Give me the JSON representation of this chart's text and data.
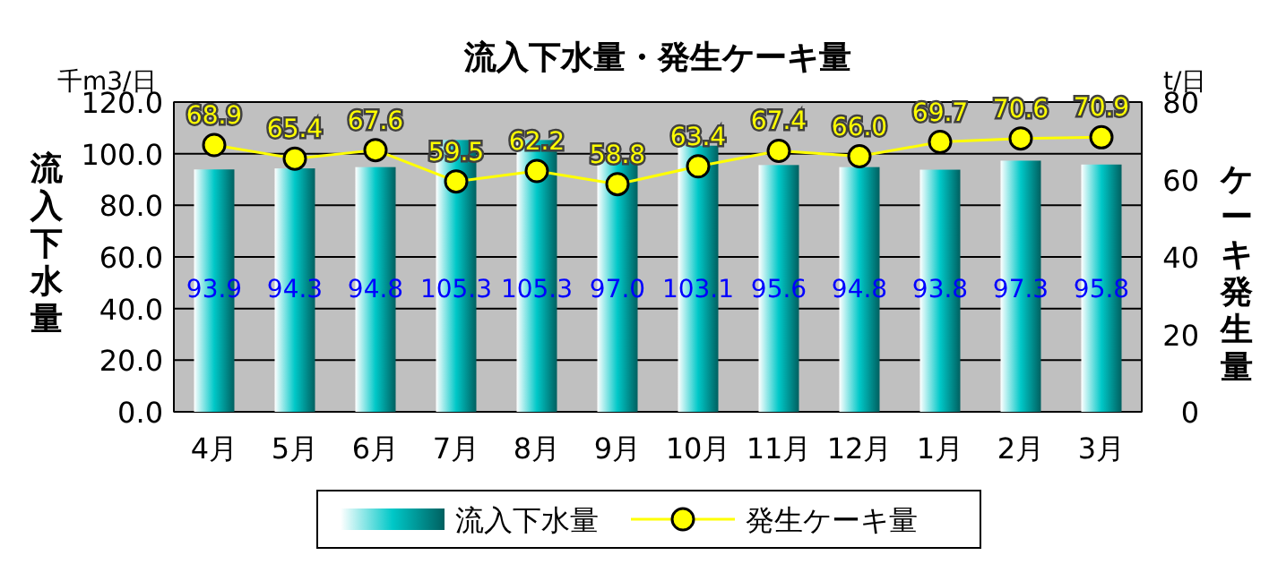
{
  "chart_data": {
    "type": "bar",
    "title": "流入下水量・発生ケーキ量",
    "ylabel": "流入下水量",
    "y2label": "ケーキ発生量",
    "annotations": [
      "千m3/日",
      "t/日"
    ],
    "categories": [
      "4月",
      "5月",
      "6月",
      "7月",
      "8月",
      "9月",
      "10月",
      "11月",
      "12月",
      "1月",
      "2月",
      "3月"
    ],
    "series": [
      {
        "name": "流入下水量",
        "color": "#00c8c8",
        "values": [
          93.9,
          94.3,
          94.8,
          105.3,
          105.3,
          97.0,
          103.1,
          95.6,
          94.8,
          93.8,
          97.3,
          95.8
        ],
        "value_labels": [
          "93.9",
          "94.3",
          "94.8",
          "105.3",
          "105.3",
          "97.0",
          "103.1",
          "95.6",
          "94.8",
          "93.8",
          "97.3",
          "95.8"
        ]
      },
      {
        "name": "発生ケーキ量",
        "type": "line",
        "axis": "y2",
        "color": "#ffff00",
        "marker": "circle",
        "values": [
          68.9,
          65.4,
          67.6,
          59.5,
          62.2,
          58.8,
          63.4,
          67.4,
          66.0,
          69.7,
          70.6,
          70.9
        ],
        "value_labels": [
          "68.9",
          "65.4",
          "67.6",
          "59.5",
          "62.2",
          "58.8",
          "63.4",
          "67.4",
          "66.0",
          "69.7",
          "70.6",
          "70.9"
        ]
      }
    ],
    "ylim": [
      0,
      120
    ],
    "yticks": [
      {
        "value": 0,
        "label": "0.0"
      },
      {
        "value": 20,
        "label": "20.0"
      },
      {
        "value": 40,
        "label": "40.0"
      },
      {
        "value": 60,
        "label": "60.0"
      },
      {
        "value": 80,
        "label": "80.0"
      },
      {
        "value": 100,
        "label": "100.0"
      },
      {
        "value": 120,
        "label": "120.0"
      }
    ],
    "y2lim": [
      0,
      80
    ],
    "y2ticks": [
      0,
      20,
      40,
      60,
      80
    ],
    "grid": "y",
    "legend": "bottom"
  }
}
